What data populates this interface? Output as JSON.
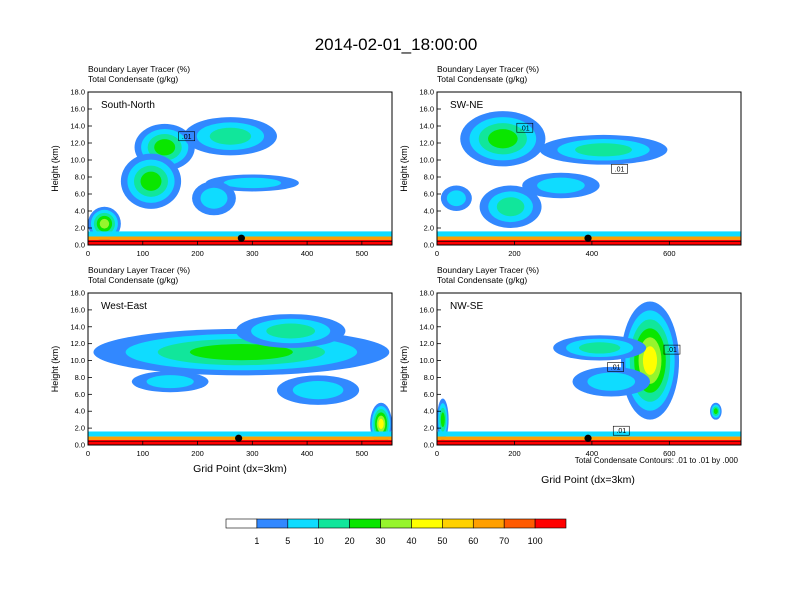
{
  "figure": {
    "title": "2014-02-01_18:00:00",
    "footnote": "Total Condensate Contours: .01 to .01 by .000",
    "xlabel": "Grid Point (dx=3km)"
  },
  "colorbar": {
    "colors": [
      "#ffffff",
      "#3288ff",
      "#0fdcff",
      "#11e69b",
      "#0ae600",
      "#96f52d",
      "#ffff00",
      "#ffd100",
      "#ff9f00",
      "#ff5a00",
      "#ff0000"
    ],
    "labels": [
      "1",
      "5",
      "10",
      "20",
      "30",
      "40",
      "50",
      "60",
      "70",
      "100"
    ]
  },
  "chart_data": [
    {
      "type": "heatmap",
      "panel": "South-North",
      "label1": "Boundary Layer Tracer   (%)",
      "label2": "Total Condensate   (g/kg)",
      "ylabel": "Height (km)",
      "xlim": [
        0,
        555
      ],
      "ylim": [
        0,
        18
      ],
      "xticks": [
        "0",
        "100",
        "200",
        "300",
        "400",
        "500"
      ],
      "yticks": [
        "0.0",
        "2.0",
        "4.0",
        "6.0",
        "8.0",
        "10.0",
        "12.0",
        "14.0",
        "16.0",
        "18.0"
      ],
      "contour_labels": [
        ".01"
      ],
      "marker_x": 280,
      "cloud_blobs": [
        {
          "x": 140,
          "y": 11.5,
          "w": 110,
          "h": 5.5,
          "level": 4
        },
        {
          "x": 260,
          "y": 12.8,
          "w": 170,
          "h": 4.5,
          "level": 3
        },
        {
          "x": 115,
          "y": 7.5,
          "w": 110,
          "h": 6.5,
          "level": 4
        },
        {
          "x": 300,
          "y": 7.3,
          "w": 170,
          "h": 2.0,
          "level": 2
        },
        {
          "x": 230,
          "y": 5.5,
          "w": 80,
          "h": 4.0,
          "level": 2
        },
        {
          "x": 30,
          "y": 2.5,
          "w": 60,
          "h": 4.0,
          "level": 5
        }
      ]
    },
    {
      "type": "heatmap",
      "panel": "SW-NE",
      "label1": "Boundary Layer Tracer   (%)",
      "label2": "Total Condensate   (g/kg)",
      "ylabel": "Height (km)",
      "xlim": [
        0,
        785
      ],
      "ylim": [
        0,
        18
      ],
      "xticks": [
        "0",
        "200",
        "400",
        "600"
      ],
      "yticks": [
        "0.0",
        "2.0",
        "4.0",
        "6.0",
        "8.0",
        "10.0",
        "12.0",
        "14.0",
        "16.0",
        "18.0"
      ],
      "contour_labels": [
        ".01",
        ".01"
      ],
      "marker_x": 390,
      "cloud_blobs": [
        {
          "x": 170,
          "y": 12.5,
          "w": 220,
          "h": 6.5,
          "level": 4
        },
        {
          "x": 430,
          "y": 11.2,
          "w": 330,
          "h": 3.5,
          "level": 3
        },
        {
          "x": 320,
          "y": 7.0,
          "w": 200,
          "h": 3.0,
          "level": 2
        },
        {
          "x": 190,
          "y": 4.5,
          "w": 160,
          "h": 5.0,
          "level": 3
        },
        {
          "x": 50,
          "y": 5.5,
          "w": 80,
          "h": 3.0,
          "level": 2
        }
      ]
    },
    {
      "type": "heatmap",
      "panel": "West-East",
      "label1": "Boundary Layer Tracer   (%)",
      "label2": "Total Condensate   (g/kg)",
      "ylabel": "Height (km)",
      "xlim": [
        0,
        555
      ],
      "ylim": [
        0,
        18
      ],
      "xticks": [
        "0",
        "100",
        "200",
        "300",
        "400",
        "500"
      ],
      "yticks": [
        "0.0",
        "2.0",
        "4.0",
        "6.0",
        "8.0",
        "10.0",
        "12.0",
        "14.0",
        "16.0",
        "18.0"
      ],
      "contour_labels": [],
      "marker_x": 275,
      "cloud_blobs": [
        {
          "x": 280,
          "y": 11.0,
          "w": 540,
          "h": 5.5,
          "level": 4
        },
        {
          "x": 370,
          "y": 13.5,
          "w": 200,
          "h": 4.0,
          "level": 3
        },
        {
          "x": 420,
          "y": 6.5,
          "w": 150,
          "h": 3.5,
          "level": 2
        },
        {
          "x": 150,
          "y": 7.5,
          "w": 140,
          "h": 2.5,
          "level": 2
        },
        {
          "x": 535,
          "y": 2.5,
          "w": 40,
          "h": 5.0,
          "level": 6
        }
      ]
    },
    {
      "type": "heatmap",
      "panel": "NW-SE",
      "label1": "Boundary Layer Tracer   (%)",
      "label2": "Total Condensate   (g/kg)",
      "ylabel": "Height (km)",
      "xlim": [
        0,
        785
      ],
      "ylim": [
        0,
        18
      ],
      "xticks": [
        "0",
        "200",
        "400",
        "600"
      ],
      "yticks": [
        "0.0",
        "2.0",
        "4.0",
        "6.0",
        "8.0",
        "10.0",
        "12.0",
        "14.0",
        "16.0",
        "18.0"
      ],
      "contour_labels": [
        ".01",
        ".01",
        ".01"
      ],
      "marker_x": 390,
      "cloud_blobs": [
        {
          "x": 550,
          "y": 10.0,
          "w": 150,
          "h": 14.0,
          "level": 6
        },
        {
          "x": 420,
          "y": 11.5,
          "w": 240,
          "h": 3.0,
          "level": 3
        },
        {
          "x": 450,
          "y": 7.5,
          "w": 200,
          "h": 3.5,
          "level": 2
        },
        {
          "x": 15,
          "y": 3.0,
          "w": 30,
          "h": 5.0,
          "level": 4
        },
        {
          "x": 720,
          "y": 4.0,
          "w": 30,
          "h": 2.0,
          "level": 4
        }
      ]
    }
  ]
}
